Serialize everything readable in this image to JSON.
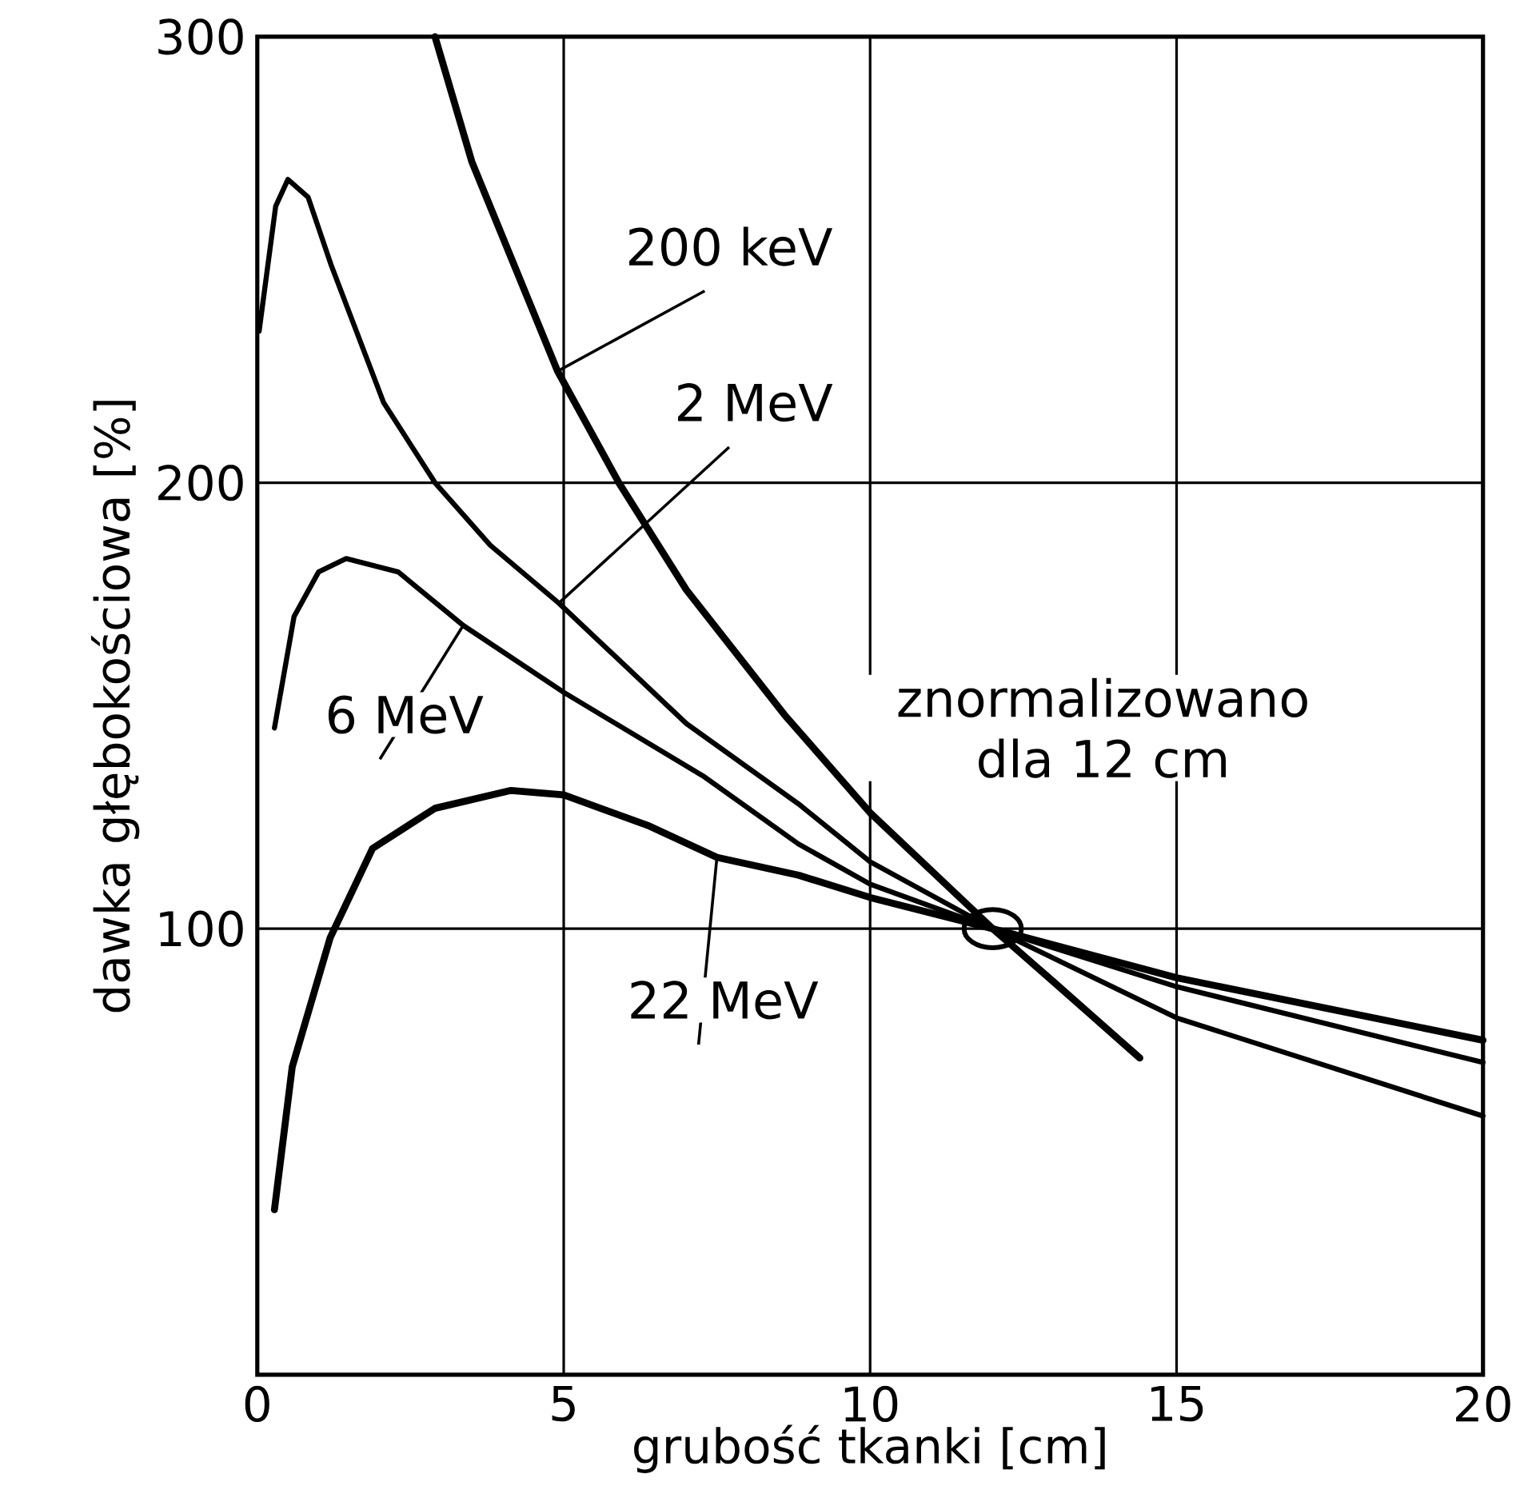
{
  "chart_data": {
    "type": "line",
    "xlabel": "grubość tkanki  [cm]",
    "ylabel": "dawka głębokościowa [%]",
    "xlim": [
      0,
      20
    ],
    "ylim": [
      0,
      300
    ],
    "xticks": [
      0,
      5,
      10,
      15,
      20
    ],
    "yticks": [
      100,
      200,
      300
    ],
    "grid": true,
    "marker": "none",
    "line_style": "solid",
    "series": [
      {
        "name": "200 keV",
        "color": "#000000",
        "x": [
          2.9,
          3.5,
          4.9,
          5.9,
          7.0,
          8.6,
          10,
          12,
          13,
          14.4
        ],
        "values": [
          300,
          272,
          225,
          200,
          176,
          148,
          126,
          100,
          88,
          71
        ]
      },
      {
        "name": "2 MeV",
        "color": "#000000",
        "x": [
          0.03,
          0.3,
          0.5,
          0.83,
          1.2,
          2.06,
          2.9,
          3.8,
          4.92,
          7,
          8.83,
          10,
          12,
          15,
          20
        ],
        "values": [
          234,
          262,
          268,
          264,
          249,
          218,
          200,
          186,
          173,
          146,
          128,
          115,
          100,
          80,
          58
        ]
      },
      {
        "name": "6 MeV",
        "color": "#000000",
        "x": [
          0.28,
          0.6,
          1.0,
          1.45,
          2.3,
          3.36,
          5,
          7.3,
          8.83,
          10,
          12,
          15,
          20
        ],
        "values": [
          145,
          170,
          180,
          183,
          180,
          168,
          153,
          134,
          119,
          110,
          100,
          87,
          70
        ]
      },
      {
        "name": "22 MeV",
        "color": "#000000",
        "x": [
          0.28,
          0.57,
          1.19,
          1.88,
          2.9,
          4.14,
          5,
          6.4,
          7.5,
          8.83,
          10,
          12,
          15,
          20
        ],
        "values": [
          37,
          69,
          98,
          118,
          127,
          131,
          130,
          123,
          116,
          112,
          107,
          100,
          89,
          75
        ]
      }
    ],
    "annotations": [
      {
        "text": "znormalizowano dla 12 cm",
        "x": 12,
        "y": 100
      }
    ]
  }
}
